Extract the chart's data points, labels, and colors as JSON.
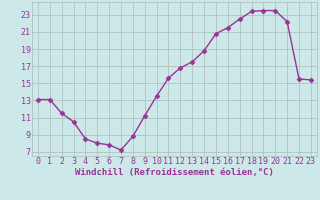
{
  "x": [
    0,
    1,
    2,
    3,
    4,
    5,
    6,
    7,
    8,
    9,
    10,
    11,
    12,
    13,
    14,
    15,
    16,
    17,
    18,
    19,
    20,
    21,
    22,
    23
  ],
  "y": [
    13.1,
    13.1,
    11.5,
    10.5,
    8.5,
    8.0,
    7.8,
    7.2,
    8.8,
    11.2,
    13.5,
    15.6,
    16.8,
    17.5,
    18.8,
    20.8,
    21.5,
    22.5,
    23.4,
    23.5,
    23.5,
    22.2,
    15.5,
    15.4
  ],
  "line_color": "#993399",
  "markersize": 2.5,
  "linewidth": 1.0,
  "bg_color": "#cce8e8",
  "grid_color": "#aabbbb",
  "xlabel": "Windchill (Refroidissement éolien,°C)",
  "xlabel_fontsize": 6.5,
  "tick_fontsize": 6.0,
  "ylim": [
    6.5,
    24.5
  ],
  "xlim": [
    -0.5,
    23.5
  ],
  "yticks": [
    7,
    9,
    11,
    13,
    15,
    17,
    19,
    21,
    23
  ],
  "xticks": [
    0,
    1,
    2,
    3,
    4,
    5,
    6,
    7,
    8,
    9,
    10,
    11,
    12,
    13,
    14,
    15,
    16,
    17,
    18,
    19,
    20,
    21,
    22,
    23
  ]
}
